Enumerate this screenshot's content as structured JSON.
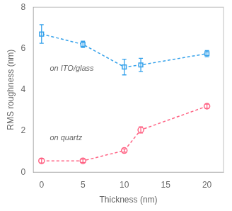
{
  "chart_data": {
    "type": "line",
    "xlabel": "Thickness (nm)",
    "ylabel": "RMS roughness (nm)",
    "x": [
      0,
      5,
      10,
      12,
      20
    ],
    "series": [
      {
        "values": [
          6.7,
          6.2,
          5.1,
          5.2,
          5.75
        ],
        "yerr": [
          0.45,
          0.15,
          0.38,
          0.32,
          0.15
        ],
        "marker": "square",
        "line_style": "dashed"
      },
      {
        "values": [
          0.55,
          0.55,
          1.05,
          2.05,
          3.2
        ],
        "yerr": [
          0.1,
          0.08,
          0.08,
          0.15,
          0.1
        ],
        "marker": "circle",
        "line_style": "dashed"
      }
    ],
    "annotations": [
      {
        "text": "on ITO/glass",
        "x": 1.0,
        "y": 4.9
      },
      {
        "text": "on quartz",
        "x": 1.0,
        "y": 1.55
      }
    ],
    "xlim": [
      -1,
      22
    ],
    "xticks": [
      0,
      5,
      10,
      15,
      20
    ],
    "ylim": [
      0,
      8
    ],
    "yticks": [
      0,
      2,
      4,
      6,
      8
    ],
    "grid": false
  }
}
